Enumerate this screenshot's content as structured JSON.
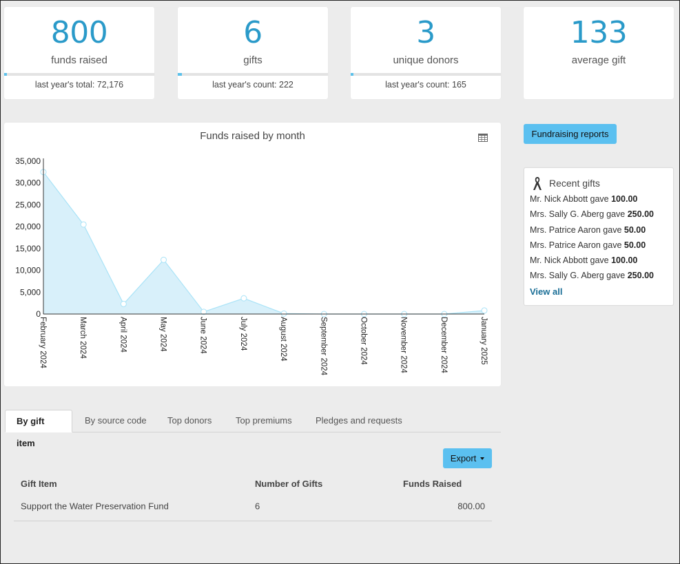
{
  "stats": [
    {
      "value": "800",
      "label": "funds raised",
      "sub": "last year's total: 72,176",
      "progress": 0.011
    },
    {
      "value": "6",
      "label": "gifts",
      "sub": "last year's count: 222",
      "progress": 0.027
    },
    {
      "value": "3",
      "label": "unique donors",
      "sub": "last year's count: 165",
      "progress": 0.018
    },
    {
      "value": "133",
      "label": "average gift",
      "sub": "",
      "progress": null
    }
  ],
  "chart": {
    "title": "Funds raised by month",
    "table_icon": "table-icon"
  },
  "chart_data": {
    "type": "area",
    "title": "Funds raised by month",
    "categories": [
      "February 2024",
      "March 2024",
      "April 2024",
      "May 2024",
      "June 2024",
      "July 2024",
      "August 2024",
      "September 2024",
      "October 2024",
      "November 2024",
      "December 2024",
      "January 2025"
    ],
    "values": [
      32500,
      20500,
      2300,
      12400,
      500,
      3600,
      100,
      0,
      0,
      0,
      0,
      800
    ],
    "yticks": [
      "0",
      "5,000",
      "10,000",
      "15,000",
      "20,000",
      "25,000",
      "30,000",
      "35,000"
    ],
    "ylim": [
      0,
      35000
    ],
    "color": "#a9e3f7",
    "grid": false
  },
  "sidebar": {
    "reports_button": "Fundraising reports",
    "recent_title": "Recent gifts",
    "recent_icon": "ribbon-icon",
    "recent": [
      {
        "name": "Mr. Nick Abbott gave ",
        "amount": "100.00"
      },
      {
        "name": "Mrs. Sally G. Aberg gave ",
        "amount": "250.00"
      },
      {
        "name": "Mrs. Patrice Aaron gave ",
        "amount": "50.00"
      },
      {
        "name": "Mrs. Patrice Aaron gave ",
        "amount": "50.00"
      },
      {
        "name": "Mr. Nick Abbott gave ",
        "amount": "100.00"
      },
      {
        "name": "Mrs. Sally G. Aberg gave ",
        "amount": "250.00"
      }
    ],
    "view_all": "View all"
  },
  "tabs": [
    "By gift item",
    "By source code",
    "Top donors",
    "Top premiums",
    "Pledges and requests"
  ],
  "export_label": "Export",
  "table": {
    "headers": [
      "Gift Item",
      "Number of Gifts",
      "Funds Raised"
    ],
    "rows": [
      [
        "Support the Water Preservation Fund",
        "6",
        "800.00"
      ]
    ]
  },
  "colors": {
    "accent": "#2a9ac9",
    "button": "#5bc0f0",
    "link": "#1a6e96"
  }
}
